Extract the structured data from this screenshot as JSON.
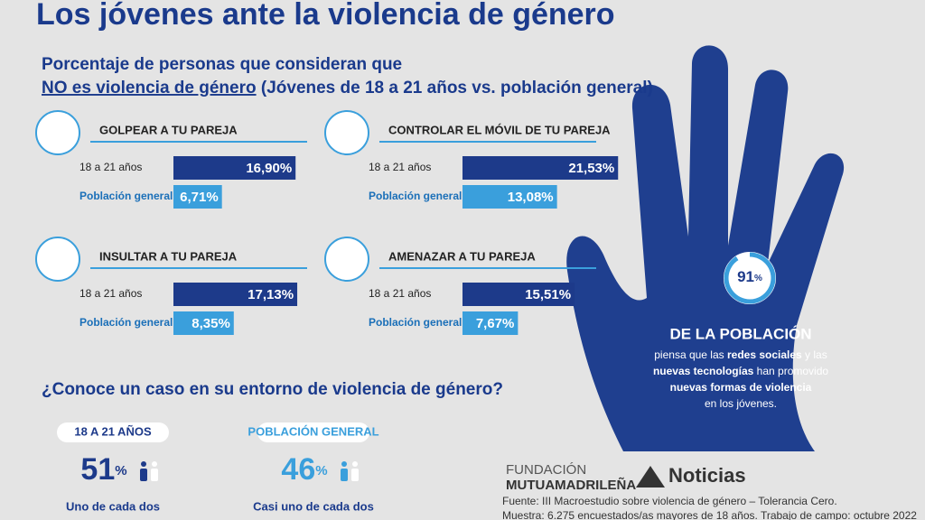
{
  "title": "Los jóvenes ante la violencia de género",
  "subtitle": {
    "line1": "Porcentaje de personas que consideran que",
    "emph": "NO es violencia de género",
    "rest": "(Jóvenes de 18 a 21 años vs. población general)"
  },
  "panels": [
    {
      "title": "GOLPEAR A TU PAREJA",
      "categories": [
        "18 a 21 años",
        "Población general"
      ],
      "values": [
        16.9,
        6.71
      ],
      "value_labels": [
        "16,90%",
        "6,71%"
      ]
    },
    {
      "title": "CONTROLAR EL MÓVIL DE TU PAREJA",
      "categories": [
        "18 a 21 años",
        "Población general"
      ],
      "values": [
        21.53,
        13.08
      ],
      "value_labels": [
        "21,53%",
        "13,08%"
      ]
    },
    {
      "title": "INSULTAR A TU PAREJA",
      "categories": [
        "18 a 21 años",
        "Población general"
      ],
      "values": [
        17.13,
        8.35
      ],
      "value_labels": [
        "17,13%",
        "8,35%"
      ]
    },
    {
      "title": "AMENAZAR A TU PAREJA",
      "categories": [
        "18 a 21 años",
        "Población general"
      ],
      "values": [
        15.51,
        7.67
      ],
      "value_labels": [
        "15,51%",
        "7,67%"
      ]
    }
  ],
  "hand": {
    "value": 91,
    "unit": "%",
    "headline": "DE LA POBLACIÓN",
    "lines": [
      [
        {
          "text": "piensa que las ",
          "bold": false
        },
        {
          "text": "redes sociales",
          "bold": true
        },
        {
          "text": " y las",
          "bold": false
        }
      ],
      [
        {
          "text": "nuevas tecnologías",
          "bold": true
        },
        {
          "text": " han promovido",
          "bold": false
        }
      ],
      [
        {
          "text": "nuevas formas de violencia",
          "bold": true
        }
      ],
      [
        {
          "text": "en los jóvenes.",
          "bold": false
        }
      ]
    ]
  },
  "question": "¿Conoce un caso en su entorno de violencia de género?",
  "cases": [
    {
      "label": "18 A 21 AÑOS",
      "value": 51,
      "unit": "%",
      "text": "Uno de cada dos"
    },
    {
      "label": "POBLACIÓN GENERAL",
      "value": 46,
      "unit": "%",
      "text": "Casi uno de cada dos"
    }
  ],
  "logos": {
    "foundation": "FUNDACIÓN",
    "name": "MUTUAMADRILEÑA",
    "news": "Noticias"
  },
  "source": [
    "Fuente: III Macroestudio sobre violencia de género – Tolerancia Cero.",
    "Muestra: 6.275 encuestados/as mayores de 18 años. Trabajo de campo: octubre 2022"
  ]
}
